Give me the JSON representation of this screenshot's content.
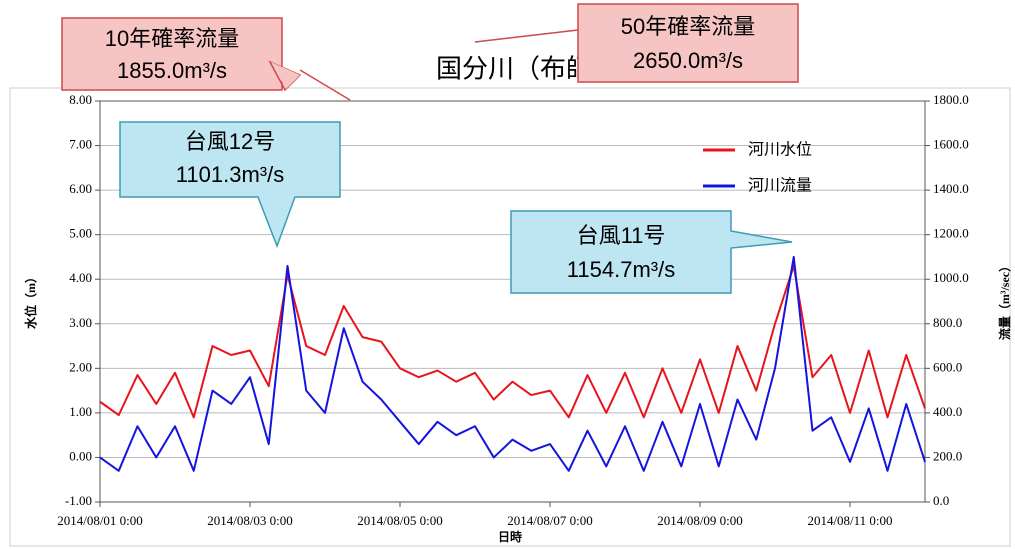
{
  "chart_data": {
    "type": "line",
    "title": "国分川（布師田）",
    "xlabel": "日時",
    "ylabel": "水位（m）",
    "y2label": "流量（m³/sec）",
    "x": [
      "2014/08/01 0:00",
      "2014/08/01 6:00",
      "2014/08/01 12:00",
      "2014/08/01 18:00",
      "2014/08/02 0:00",
      "2014/08/02 6:00",
      "2014/08/02 12:00",
      "2014/08/02 18:00",
      "2014/08/03 0:00",
      "2014/08/03 6:00",
      "2014/08/03 12:00",
      "2014/08/03 18:00",
      "2014/08/04 0:00",
      "2014/08/04 6:00",
      "2014/08/04 12:00",
      "2014/08/04 18:00",
      "2014/08/05 0:00",
      "2014/08/05 6:00",
      "2014/08/05 12:00",
      "2014/08/05 18:00",
      "2014/08/06 0:00",
      "2014/08/06 6:00",
      "2014/08/06 12:00",
      "2014/08/06 18:00",
      "2014/08/07 0:00",
      "2014/08/07 6:00",
      "2014/08/07 12:00",
      "2014/08/07 18:00",
      "2014/08/08 0:00",
      "2014/08/08 6:00",
      "2014/08/08 12:00",
      "2014/08/08 18:00",
      "2014/08/09 0:00",
      "2014/08/09 6:00",
      "2014/08/09 12:00",
      "2014/08/09 18:00",
      "2014/08/10 0:00",
      "2014/08/10 6:00",
      "2014/08/10 12:00",
      "2014/08/10 18:00",
      "2014/08/11 0:00",
      "2014/08/11 6:00",
      "2014/08/11 12:00",
      "2014/08/11 18:00",
      "2014/08/12 0:00"
    ],
    "series": [
      {
        "name": "河川水位",
        "color": "#e8141b",
        "axis": "y",
        "values": [
          1.25,
          0.95,
          1.85,
          1.2,
          1.9,
          0.9,
          2.5,
          2.3,
          2.4,
          1.6,
          4.1,
          2.5,
          2.3,
          3.4,
          2.7,
          2.6,
          2.0,
          1.8,
          1.95,
          1.7,
          1.9,
          1.3,
          1.7,
          1.4,
          1.5,
          0.9,
          1.85,
          1.0,
          1.9,
          0.9,
          2.0,
          1.0,
          2.2,
          1.0,
          2.5,
          1.5,
          3.0,
          4.3,
          1.8,
          2.3,
          1.0,
          2.4,
          0.9,
          2.3,
          1.1
        ]
      },
      {
        "name": "河川流量",
        "color": "#1414e0",
        "axis": "y2",
        "values": [
          200,
          140,
          340,
          200,
          340,
          140,
          500,
          440,
          560,
          260,
          1060,
          500,
          400,
          780,
          540,
          460,
          360,
          260,
          360,
          300,
          340,
          200,
          280,
          230,
          260,
          140,
          320,
          160,
          340,
          140,
          360,
          160,
          440,
          160,
          460,
          280,
          600,
          1100,
          320,
          380,
          180,
          420,
          140,
          440,
          180
        ]
      }
    ],
    "xlim": [
      "2014/08/01 0:00",
      "2014/08/12 0:00"
    ],
    "xticks": [
      "2014/08/01 0:00",
      "2014/08/03 0:00",
      "2014/08/05 0:00",
      "2014/08/07 0:00",
      "2014/08/09 0:00",
      "2014/08/11 0:00"
    ],
    "ylim": [
      -1,
      8
    ],
    "yticks": [
      {
        "value": -1,
        "label": "-1.00"
      },
      {
        "value": 0,
        "label": "0.00"
      },
      {
        "value": 1,
        "label": "1.00"
      },
      {
        "value": 2,
        "label": "2.00"
      },
      {
        "value": 3,
        "label": "3.00"
      },
      {
        "value": 4,
        "label": "4.00"
      },
      {
        "value": 5,
        "label": "5.00"
      },
      {
        "value": 6,
        "label": "6.00"
      },
      {
        "value": 7,
        "label": "7.00"
      },
      {
        "value": 8,
        "label": "8.00"
      }
    ],
    "y2lim": [
      0,
      1800
    ],
    "y2ticks": [
      {
        "value": 0,
        "label": "0.0"
      },
      {
        "value": 200,
        "label": "200.0"
      },
      {
        "value": 400,
        "label": "400.0"
      },
      {
        "value": 600,
        "label": "600.0"
      },
      {
        "value": 800,
        "label": "800.0"
      },
      {
        "value": 1000,
        "label": "1000.0"
      },
      {
        "value": 1200,
        "label": "1200.0"
      },
      {
        "value": 1400,
        "label": "1400.0"
      },
      {
        "value": 1600,
        "label": "1600.0"
      },
      {
        "value": 1800,
        "label": "1800.0"
      }
    ],
    "grid": true,
    "legend": "upper right",
    "annotations": [
      {
        "lines": [
          "10年確率流量",
          "1855.0m³/s"
        ]
      },
      {
        "lines": [
          "50年確率流量",
          "2650.0m³/s"
        ]
      },
      {
        "lines": [
          "台風12号",
          "1101.3m³/s"
        ]
      },
      {
        "lines": [
          "台風11号",
          "1154.7m³/s"
        ]
      }
    ]
  }
}
